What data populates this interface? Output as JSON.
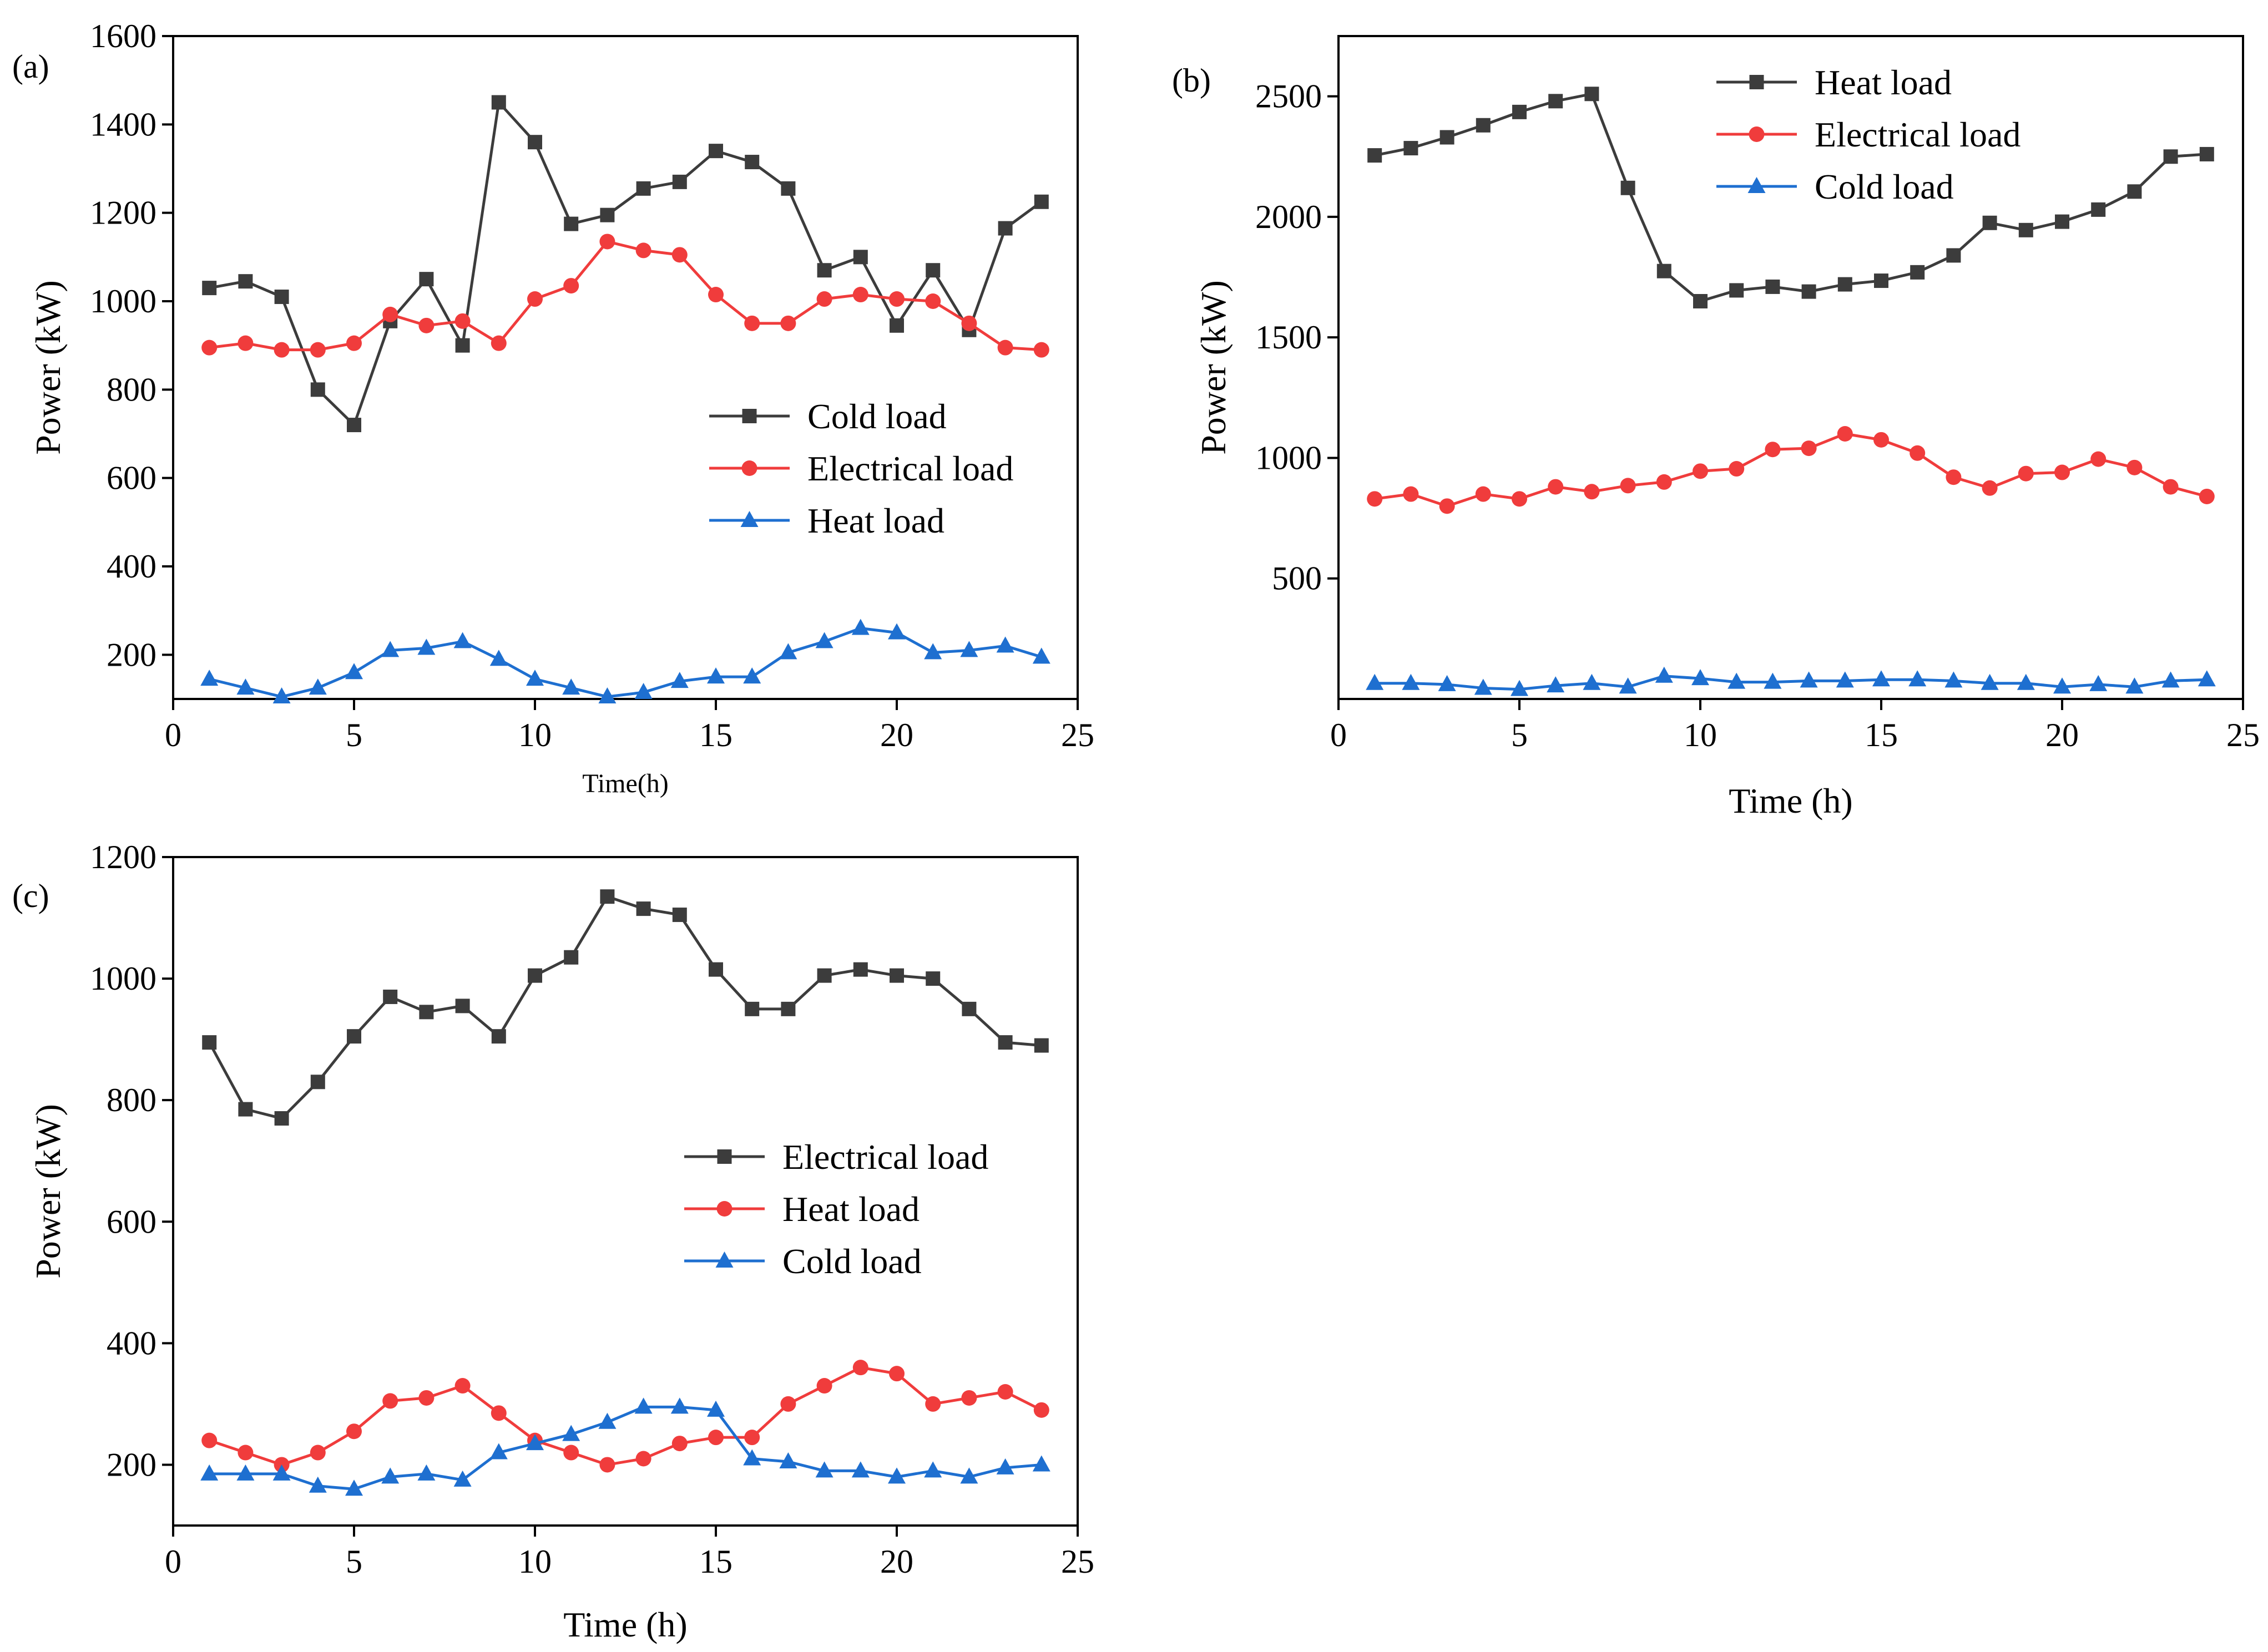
{
  "colors": {
    "black": "#3c3c3c",
    "red": "#f03c3c",
    "blue": "#1e6fd0"
  },
  "chart_data": [
    {
      "panel": "(a)",
      "type": "line",
      "x": [
        1,
        2,
        3,
        4,
        5,
        6,
        7,
        8,
        9,
        10,
        11,
        12,
        13,
        14,
        15,
        16,
        17,
        18,
        19,
        20,
        21,
        22,
        23,
        24
      ],
      "xlim": [
        0,
        25
      ],
      "ylim": [
        100,
        1600
      ],
      "xticks": [
        0,
        5,
        10,
        15,
        20,
        25
      ],
      "yticks": [
        200,
        400,
        600,
        800,
        1000,
        1200,
        1400,
        1600
      ],
      "xlabel": "Time(h)",
      "ylabel": "Power (kW)",
      "legend_position": "center-right",
      "series": [
        {
          "name": "Cold load",
          "color": "black",
          "marker": "square",
          "values": [
            1030,
            1045,
            1010,
            800,
            720,
            955,
            1050,
            900,
            1450,
            1360,
            1175,
            1195,
            1255,
            1270,
            1340,
            1315,
            1255,
            1070,
            1100,
            945,
            1070,
            935,
            1165,
            1225
          ]
        },
        {
          "name": "Electrical load",
          "color": "red",
          "marker": "circle",
          "values": [
            895,
            905,
            890,
            890,
            905,
            970,
            945,
            955,
            905,
            1005,
            1035,
            1135,
            1115,
            1105,
            1015,
            950,
            950,
            1005,
            1015,
            1005,
            1000,
            950,
            895,
            890
          ]
        },
        {
          "name": "Heat load",
          "color": "blue",
          "marker": "triangle",
          "values": [
            145,
            125,
            105,
            125,
            160,
            210,
            215,
            230,
            190,
            145,
            125,
            105,
            115,
            140,
            150,
            150,
            205,
            230,
            260,
            250,
            205,
            210,
            220,
            195
          ]
        }
      ]
    },
    {
      "panel": "(b)",
      "type": "line",
      "x": [
        1,
        2,
        3,
        4,
        5,
        6,
        7,
        8,
        9,
        10,
        11,
        12,
        13,
        14,
        15,
        16,
        17,
        18,
        19,
        20,
        21,
        22,
        23,
        24
      ],
      "xlim": [
        0,
        25
      ],
      "ylim": [
        0,
        2750
      ],
      "xticks": [
        0,
        5,
        10,
        15,
        20,
        25
      ],
      "yticks": [
        500,
        1000,
        1500,
        2000,
        2500
      ],
      "xlabel": "Time (h)",
      "ylabel": "Power (kW)",
      "legend_position": "top-center",
      "series": [
        {
          "name": "Heat load",
          "color": "black",
          "marker": "square",
          "values": [
            2255,
            2285,
            2330,
            2380,
            2435,
            2480,
            2510,
            2120,
            1775,
            1650,
            1695,
            1710,
            1690,
            1720,
            1735,
            1770,
            1840,
            1975,
            1945,
            1980,
            2030,
            2105,
            2250,
            2260
          ]
        },
        {
          "name": "Electrical load",
          "color": "red",
          "marker": "circle",
          "values": [
            830,
            850,
            800,
            850,
            830,
            880,
            860,
            885,
            900,
            945,
            955,
            1035,
            1040,
            1100,
            1075,
            1020,
            920,
            875,
            935,
            940,
            995,
            960,
            880,
            840
          ]
        },
        {
          "name": "Cold load",
          "color": "blue",
          "marker": "triangle",
          "values": [
            65,
            65,
            60,
            45,
            40,
            55,
            65,
            50,
            95,
            85,
            70,
            70,
            75,
            75,
            80,
            80,
            75,
            65,
            65,
            50,
            60,
            50,
            75,
            80
          ]
        }
      ]
    },
    {
      "panel": "(c)",
      "type": "line",
      "x": [
        1,
        2,
        3,
        4,
        5,
        6,
        7,
        8,
        9,
        10,
        11,
        12,
        13,
        14,
        15,
        16,
        17,
        18,
        19,
        20,
        21,
        22,
        23,
        24
      ],
      "xlim": [
        0,
        25
      ],
      "ylim": [
        100,
        1200
      ],
      "xticks": [
        0,
        5,
        10,
        15,
        20,
        25
      ],
      "yticks": [
        200,
        400,
        600,
        800,
        1000,
        1200
      ],
      "xlabel": "Time (h)",
      "ylabel": "Power (kW)",
      "legend_position": "center-right",
      "series": [
        {
          "name": "Electrical load",
          "color": "black",
          "marker": "square",
          "values": [
            895,
            785,
            770,
            830,
            905,
            970,
            945,
            955,
            905,
            1005,
            1035,
            1135,
            1115,
            1105,
            1015,
            950,
            950,
            1005,
            1015,
            1005,
            1000,
            950,
            895,
            890
          ]
        },
        {
          "name": "Heat load",
          "color": "red",
          "marker": "circle",
          "values": [
            240,
            220,
            200,
            220,
            255,
            305,
            310,
            330,
            285,
            240,
            220,
            200,
            210,
            235,
            245,
            245,
            300,
            330,
            360,
            350,
            300,
            310,
            320,
            290
          ]
        },
        {
          "name": "Cold load",
          "color": "blue",
          "marker": "triangle",
          "values": [
            185,
            185,
            185,
            165,
            160,
            180,
            185,
            175,
            220,
            235,
            250,
            270,
            295,
            295,
            290,
            210,
            205,
            190,
            190,
            180,
            190,
            180,
            195,
            200
          ]
        }
      ]
    }
  ]
}
